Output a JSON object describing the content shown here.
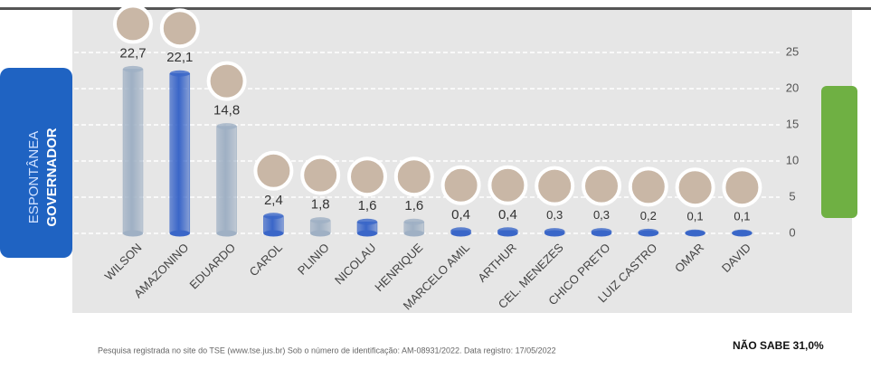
{
  "chart_data": {
    "type": "bar",
    "side_labels": [
      "ESPONTÂNEA",
      "GOVERNADOR"
    ],
    "categories": [
      "WILSON",
      "AMAZONINO",
      "EDUARDO",
      "CAROL",
      "PLINIO",
      "NICOLAU",
      "HENRIQUE",
      "MARCELO AMIL",
      "ARTHUR",
      "CEL. MENEZES",
      "CHICO PRETO",
      "LUIZ CASTRO",
      "OMAR",
      "DAVID"
    ],
    "values": [
      22.7,
      22.1,
      14.8,
      2.4,
      1.8,
      1.6,
      1.6,
      0.4,
      0.4,
      0.3,
      0.3,
      0.2,
      0.1,
      0.1
    ],
    "value_labels": [
      "22,7",
      "22,1",
      "14,8",
      "2,4",
      "1,8",
      "1,6",
      "1,6",
      "0,4",
      "0,4",
      "0,3",
      "0,3",
      "0,2",
      "0,1",
      "0,1"
    ],
    "colors": [
      "#9fb0c4",
      "#3a66c8",
      "#9fb0c4",
      "#3a66c8",
      "#9fb0c4",
      "#3a66c8",
      "#9fb0c4",
      "#3a66c8",
      "#3a66c8",
      "#3a66c8",
      "#3a66c8",
      "#3a66c8",
      "#3a66c8",
      "#3a66c8"
    ],
    "ylim": [
      0,
      25
    ],
    "yticks": [
      0,
      5,
      10,
      15,
      20,
      25
    ],
    "grid": true,
    "source": "Pesquisa registrada no site do TSE (www.tse.jus.br) Sob o número de identificação: AM-08931/2022. Data registro: 17/05/2022",
    "annotation": "NÃO SABE 31,0%"
  }
}
